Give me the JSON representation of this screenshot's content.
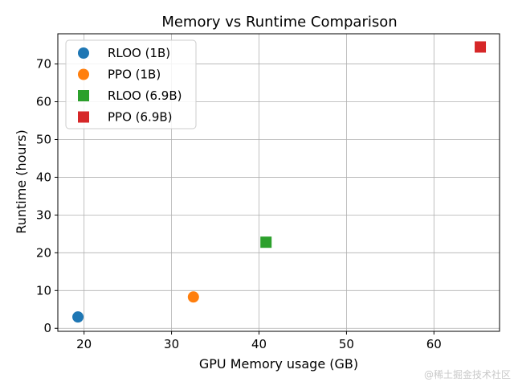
{
  "chart_data": {
    "type": "scatter",
    "title": "Memory vs Runtime Comparison",
    "xlabel": "GPU Memory usage (GB)",
    "ylabel": "Runtime (hours)",
    "xlim": [
      17,
      67.5
    ],
    "ylim": [
      -0.8,
      78
    ],
    "xticks": [
      20,
      30,
      40,
      50,
      60
    ],
    "yticks": [
      0,
      10,
      20,
      30,
      40,
      50,
      60,
      70
    ],
    "grid": true,
    "legend": "top-left",
    "series": [
      {
        "name": "RLOO (1B)",
        "marker": "circle",
        "color": "#1f77b4",
        "x": [
          19.3
        ],
        "y": [
          3.0
        ]
      },
      {
        "name": "PPO (1B)",
        "marker": "circle",
        "color": "#ff7f0e",
        "x": [
          32.5
        ],
        "y": [
          8.3
        ]
      },
      {
        "name": "RLOO (6.9B)",
        "marker": "square",
        "color": "#2ca02c",
        "x": [
          40.8
        ],
        "y": [
          22.8
        ]
      },
      {
        "name": "PPO (6.9B)",
        "marker": "square",
        "color": "#d62728",
        "x": [
          65.3
        ],
        "y": [
          74.5
        ]
      }
    ]
  },
  "watermark": "@稀土掘金技术社区"
}
